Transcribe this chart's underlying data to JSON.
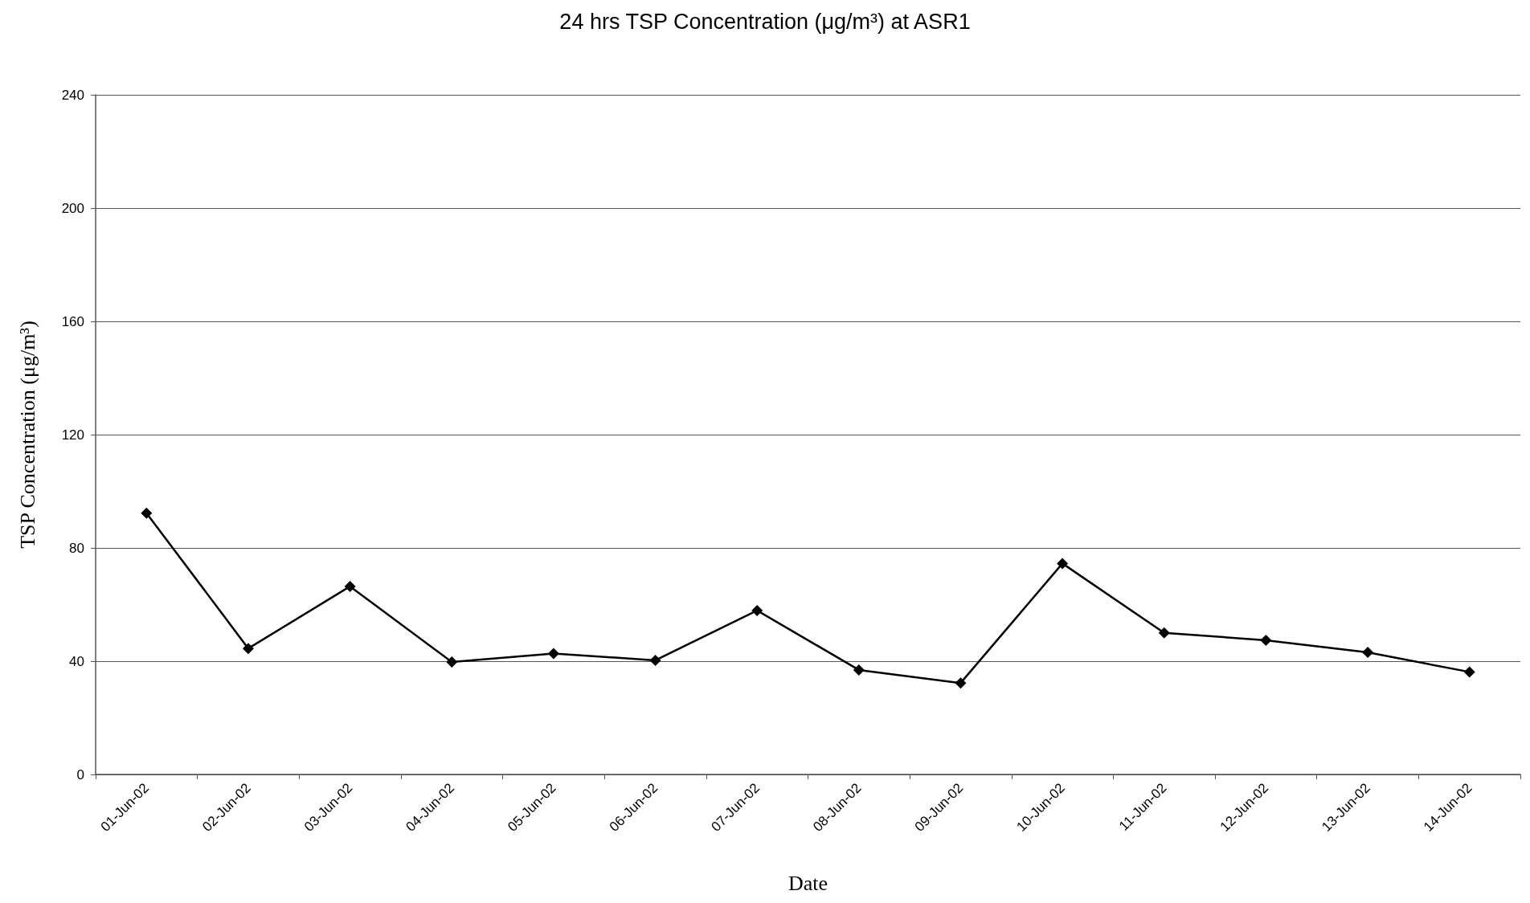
{
  "chart_data": {
    "type": "line",
    "title": "24 hrs TSP Concentration (μg/m³) at ASR1",
    "xlabel": "Date",
    "ylabel": "TSP Concentration (μg/m³)",
    "categories": [
      "01-Jun-02",
      "02-Jun-02",
      "03-Jun-02",
      "04-Jun-02",
      "05-Jun-02",
      "06-Jun-02",
      "07-Jun-02",
      "08-Jun-02",
      "09-Jun-02",
      "10-Jun-02",
      "11-Jun-02",
      "12-Jun-02",
      "13-Jun-02",
      "14-Jun-02"
    ],
    "series": [
      {
        "color": "#000000",
        "values": [
          92.3,
          44.5,
          66.4,
          39.7,
          42.7,
          40.3,
          57.9,
          36.9,
          32.3,
          74.5,
          50.0,
          47.4,
          43.1,
          36.2
        ]
      }
    ],
    "ylim": [
      0,
      240
    ],
    "yticks": [
      0,
      40,
      80,
      120,
      160,
      200,
      240
    ],
    "grid": "y",
    "legend": false,
    "marker": "diamond",
    "line_style": "solid"
  }
}
